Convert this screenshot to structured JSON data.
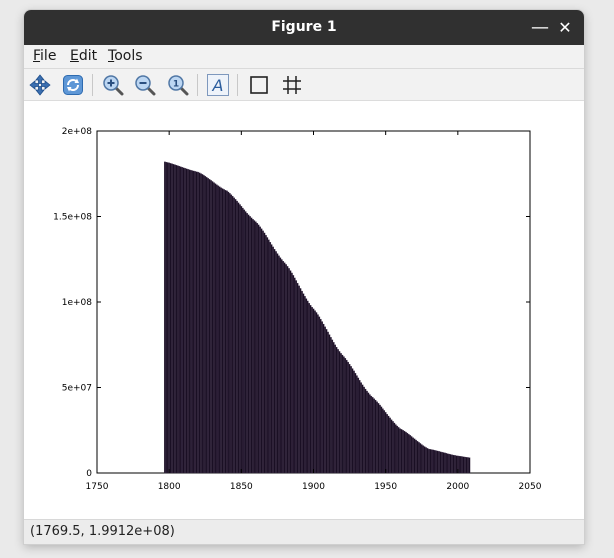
{
  "window": {
    "title": "Figure 1",
    "minimize_glyph": "—",
    "close_glyph": "✕"
  },
  "menu": {
    "items": [
      {
        "label_first": "F",
        "label_rest": "ile"
      },
      {
        "label_first": "E",
        "label_rest": "dit"
      },
      {
        "label_first": "T",
        "label_rest": "ools"
      }
    ]
  },
  "toolbar": {
    "tools": [
      "pan-icon",
      "rotate-icon",
      "zoom-in-icon",
      "zoom-out-icon",
      "zoom-reset-icon",
      "text-icon",
      "axes-box-icon",
      "grid-icon"
    ],
    "text_tool_glyph": "A"
  },
  "status": {
    "coordinates": "(1769.5, 1.9912e+08)"
  },
  "colors": {
    "bar_fill": "#1a0f24",
    "bar_edge": "#4a3a55",
    "titlebar": "#303030"
  },
  "chart_data": {
    "type": "bar",
    "title": "",
    "xlabel": "",
    "ylabel": "",
    "xlim": [
      1750,
      2050
    ],
    "ylim": [
      0,
      200000000
    ],
    "xticks": [
      1750,
      1800,
      1850,
      1900,
      1950,
      2000,
      2050
    ],
    "xtick_labels": [
      "1750",
      "1800",
      "1850",
      "1900",
      "1950",
      "2000",
      "2050"
    ],
    "yticks": [
      0,
      50000000,
      100000000,
      150000000,
      200000000
    ],
    "ytick_labels": [
      "0",
      "5e+07",
      "1e+08",
      "1.5e+08",
      "2e+08"
    ],
    "grid": false,
    "x_start": 1797,
    "x_end": 2008,
    "curve_points": [
      {
        "x": 1797,
        "y": 182000000
      },
      {
        "x": 1820,
        "y": 176000000
      },
      {
        "x": 1840,
        "y": 165000000
      },
      {
        "x": 1860,
        "y": 147000000
      },
      {
        "x": 1880,
        "y": 123000000
      },
      {
        "x": 1900,
        "y": 96000000
      },
      {
        "x": 1920,
        "y": 69000000
      },
      {
        "x": 1940,
        "y": 45000000
      },
      {
        "x": 1960,
        "y": 26000000
      },
      {
        "x": 1980,
        "y": 14000000
      },
      {
        "x": 2000,
        "y": 10000000
      },
      {
        "x": 2008,
        "y": 9000000
      }
    ]
  }
}
